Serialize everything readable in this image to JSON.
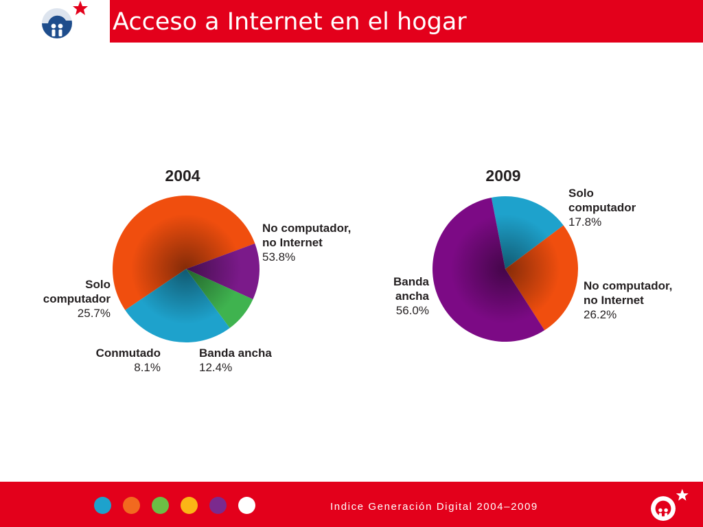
{
  "header": {
    "title": "Acceso a Internet en el hogar"
  },
  "chart_data": [
    {
      "type": "pie",
      "title": "2004",
      "slices": [
        {
          "name": [
            "No computador,",
            "no Internet"
          ],
          "value": 53.8,
          "value_label": "53.8%",
          "color": "#f04e0e"
        },
        {
          "name": [
            "Banda ancha"
          ],
          "value": 12.4,
          "value_label": "12.4%",
          "color": "#7b1a8a"
        },
        {
          "name": [
            "Conmutado"
          ],
          "value": 8.1,
          "value_label": "8.1%",
          "color": "#3fb34f"
        },
        {
          "name": [
            "Solo",
            "computador"
          ],
          "value": 25.7,
          "value_label": "25.7%",
          "color": "#1ea2cc"
        }
      ]
    },
    {
      "type": "pie",
      "title": "2009",
      "slices": [
        {
          "name": [
            "Solo",
            "computador"
          ],
          "value": 17.8,
          "value_label": "17.8%",
          "color": "#1ea2cc"
        },
        {
          "name": [
            "No computador,",
            "no Internet"
          ],
          "value": 26.2,
          "value_label": "26.2%",
          "color": "#f04e0e"
        },
        {
          "name": [
            "Banda",
            "ancha"
          ],
          "value": 56.0,
          "value_label": "56.0%",
          "color": "#7c0a85"
        }
      ]
    }
  ],
  "footer": {
    "text": "Indice Generación Digital 2004–2009",
    "dot_colors": [
      "#1ea2cc",
      "#f26a1f",
      "#6cbe45",
      "#fbb516",
      "#7b2a8e",
      "#ffffff"
    ]
  }
}
